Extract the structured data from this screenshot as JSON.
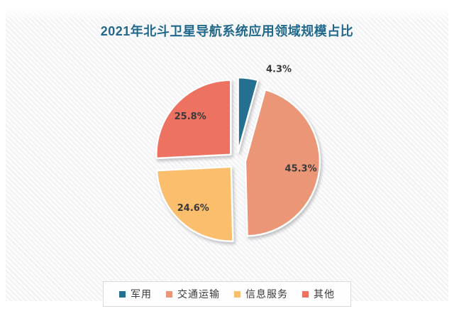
{
  "title": "2021年北斗卫星导航系统应用领域规模占比",
  "chart_data": {
    "type": "pie",
    "title": "2021年北斗卫星导航系统应用领域规模占比",
    "start_angle_deg": 0,
    "direction": "clockwise",
    "exploded": true,
    "legend_position": "bottom",
    "slices": [
      {
        "label": "军用",
        "value": 4.3,
        "display": "4.3%",
        "color": "#256F90",
        "label_inside": false
      },
      {
        "label": "交通运输",
        "value": 45.3,
        "display": "45.3%",
        "color": "#EA9677",
        "label_inside": true
      },
      {
        "label": "信息服务",
        "value": 24.6,
        "display": "24.6%",
        "color": "#FBBE6D",
        "label_inside": true
      },
      {
        "label": "其他",
        "value": 25.8,
        "display": "25.8%",
        "color": "#ED7261",
        "label_inside": true
      }
    ]
  },
  "colors": {
    "title": "#21698C",
    "label_text": "#3a3a3a",
    "legend_border": "#d9d9d9",
    "panel_stripe": "#e2e3e8"
  }
}
